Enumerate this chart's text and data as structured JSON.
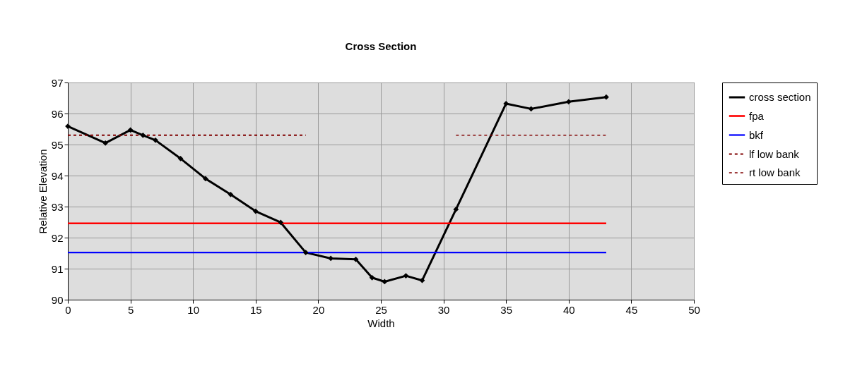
{
  "chart_data": {
    "type": "line",
    "title": "Cross Section",
    "xlabel": "Width",
    "ylabel": "Relative Elevation",
    "xlim": [
      0,
      50
    ],
    "xticks": [
      0,
      5,
      10,
      15,
      20,
      25,
      30,
      35,
      40,
      45,
      50
    ],
    "ylim": [
      90,
      97
    ],
    "yticks": [
      90,
      91,
      92,
      93,
      94,
      95,
      96,
      97
    ],
    "grid": true,
    "legend": "right",
    "series": [
      {
        "name": "cross section",
        "color": "#000000",
        "marker": "diamond",
        "line_style": "solid",
        "x": [
          0,
          3,
          5,
          6,
          7,
          9,
          11,
          13,
          15,
          17,
          19,
          21,
          23,
          24.3,
          25.3,
          27,
          28.3,
          31,
          35,
          37,
          40,
          43
        ],
        "values": [
          95.59,
          95.05,
          95.47,
          95.3,
          95.14,
          94.55,
          93.9,
          93.39,
          92.85,
          92.49,
          91.52,
          91.33,
          91.3,
          90.71,
          90.58,
          90.77,
          90.62,
          92.91,
          96.32,
          96.15,
          96.38,
          96.53
        ]
      },
      {
        "name": "fpa",
        "color": "#ff0000",
        "marker": "none",
        "line_style": "solid",
        "x": [
          0,
          43
        ],
        "values": [
          92.46,
          92.46
        ]
      },
      {
        "name": "bkf",
        "color": "#0000ff",
        "marker": "none",
        "line_style": "solid",
        "x": [
          0,
          43
        ],
        "values": [
          91.52,
          91.52
        ]
      },
      {
        "name": "lf low bank",
        "color": "#800000",
        "marker": "none",
        "line_style": "dashed",
        "x": [
          0,
          19
        ],
        "values": [
          95.3,
          95.3
        ]
      },
      {
        "name": "rt low bank",
        "color": "#800000",
        "marker": "none",
        "line_style": "dashed",
        "x": [
          31,
          43
        ],
        "values": [
          95.3,
          95.3
        ]
      }
    ]
  }
}
